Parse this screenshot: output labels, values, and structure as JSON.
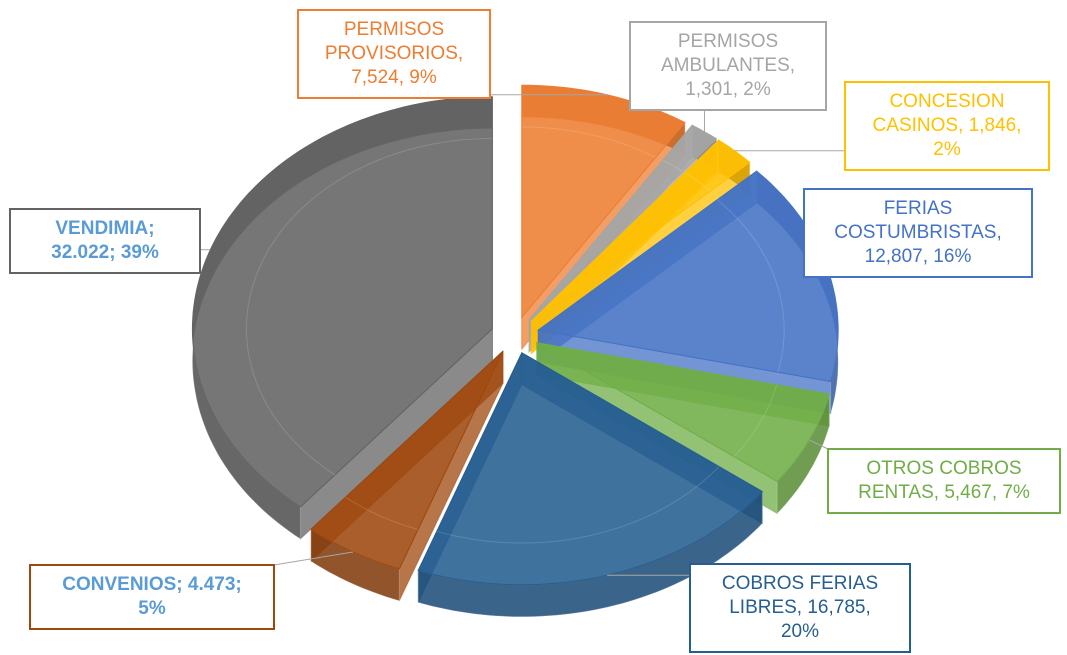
{
  "chart_data": {
    "type": "pie3d",
    "categories": [
      "PERMISOS PROVISORIOS",
      "PERMISOS AMBULANTES",
      "CONCESION CASINOS",
      "FERIAS COSTUMBRISTAS",
      "OTROS COBROS RENTAS",
      "COBROS FERIAS LIBRES",
      "CONVENIOS",
      "VENDIMIA"
    ],
    "values": [
      7524,
      1301,
      1846,
      12807,
      5467,
      16785,
      4473,
      32022
    ],
    "labels": [
      [
        "PERMISOS",
        "PROVISORIOS,",
        "7,524, 9%"
      ],
      [
        "PERMISOS",
        "AMBULANTES,",
        "1,301, 2%"
      ],
      [
        "CONCESION",
        "CASINOS, 1,846,",
        "2%"
      ],
      [
        "FERIAS",
        "COSTUMBRISTAS,",
        "12,807, 16%"
      ],
      [
        "OTROS COBROS",
        "RENTAS, 5,467, 7%"
      ],
      [
        "COBROS FERIAS",
        "LIBRES, 16,785,",
        "20%"
      ],
      [
        "CONVENIOS; 4.473;",
        "5%"
      ],
      [
        "VENDIMIA;",
        "32.022; 39%"
      ]
    ],
    "colors": [
      "#ed7d31",
      "#a5a5a5",
      "#ffc000",
      "#4472c4",
      "#70ad47",
      "#255e91",
      "#9e480e",
      "#636363"
    ],
    "label_colors": [
      "#ed7d31",
      "#a5a5a5",
      "#ffc000",
      "#4472c4",
      "#70ad47",
      "#255e91",
      "#5b9bd5",
      "#5b9bd5"
    ],
    "label_bold": [
      false,
      false,
      false,
      false,
      false,
      false,
      true,
      true
    ]
  }
}
